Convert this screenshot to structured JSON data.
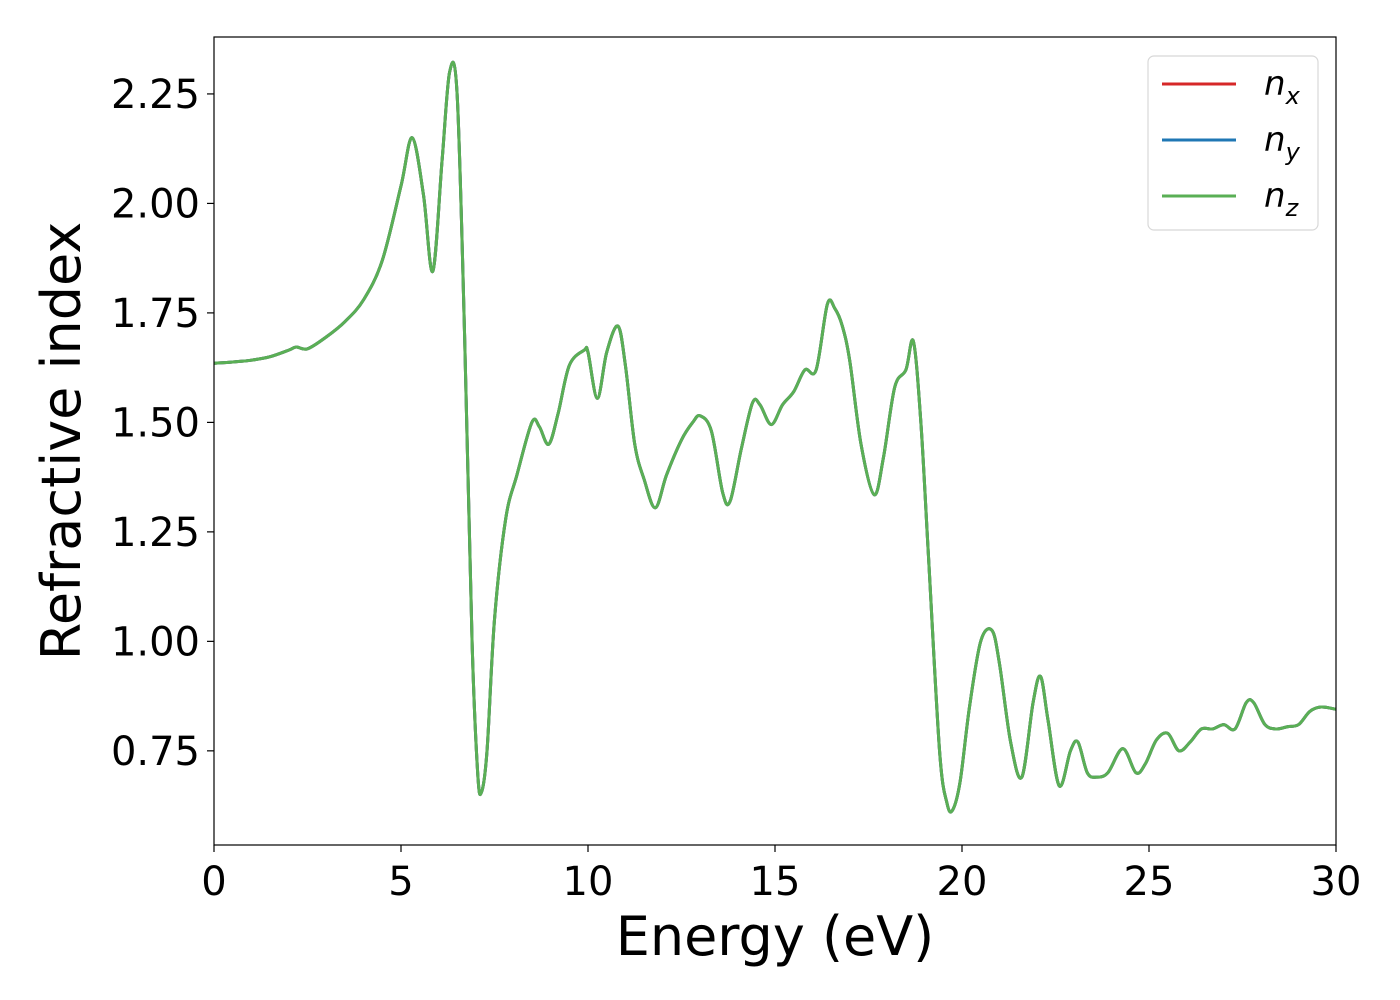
{
  "chart_data": {
    "type": "line",
    "title": "",
    "xlabel": "Energy (eV)",
    "ylabel": "Refractive index",
    "xlim": [
      0,
      30
    ],
    "ylim": [
      0.535,
      2.38
    ],
    "xticks": [
      0,
      5,
      10,
      15,
      20,
      25,
      30
    ],
    "xtick_labels": [
      "0",
      "5",
      "10",
      "15",
      "20",
      "25",
      "30"
    ],
    "yticks": [
      0.75,
      1.0,
      1.25,
      1.5,
      1.75,
      2.0,
      2.25
    ],
    "ytick_labels": [
      "0.75",
      "1.00",
      "1.25",
      "1.50",
      "1.75",
      "2.00",
      "2.25"
    ],
    "grid": false,
    "legend_position": "top-right",
    "x": [
      0,
      0.5,
      1.0,
      1.5,
      2.0,
      2.2,
      2.5,
      3.0,
      3.5,
      4.0,
      4.5,
      5.0,
      5.3,
      5.6,
      5.85,
      6.1,
      6.3,
      6.5,
      6.7,
      6.9,
      7.05,
      7.15,
      7.3,
      7.5,
      7.8,
      8.1,
      8.5,
      8.7,
      8.95,
      9.2,
      9.5,
      9.9,
      10.0,
      10.25,
      10.5,
      10.8,
      11.0,
      11.25,
      11.5,
      11.8,
      12.1,
      12.5,
      12.8,
      13.0,
      13.3,
      13.6,
      13.8,
      14.1,
      14.4,
      14.6,
      14.9,
      15.2,
      15.5,
      15.8,
      16.1,
      16.4,
      16.6,
      16.8,
      17.0,
      17.3,
      17.65,
      17.9,
      18.2,
      18.5,
      18.7,
      18.9,
      19.1,
      19.4,
      19.6,
      19.75,
      19.95,
      20.2,
      20.5,
      20.8,
      21.0,
      21.3,
      21.6,
      21.9,
      22.1,
      22.3,
      22.6,
      22.9,
      23.1,
      23.35,
      23.6,
      23.9,
      24.3,
      24.65,
      24.9,
      25.2,
      25.5,
      25.8,
      26.1,
      26.4,
      26.7,
      27.0,
      27.3,
      27.6,
      27.8,
      28.1,
      28.4,
      28.7,
      29.0,
      29.3,
      29.6,
      30.0
    ],
    "series": [
      {
        "name": "n_x",
        "color": "#d62728",
        "values": [
          1.635,
          1.638,
          1.642,
          1.65,
          1.665,
          1.672,
          1.668,
          1.695,
          1.73,
          1.78,
          1.87,
          2.04,
          2.15,
          2.02,
          1.845,
          2.1,
          2.3,
          2.25,
          1.7,
          1.0,
          0.7,
          0.655,
          0.75,
          1.05,
          1.28,
          1.38,
          1.5,
          1.49,
          1.45,
          1.52,
          1.63,
          1.665,
          1.66,
          1.555,
          1.66,
          1.72,
          1.63,
          1.45,
          1.37,
          1.305,
          1.38,
          1.46,
          1.5,
          1.515,
          1.48,
          1.34,
          1.32,
          1.44,
          1.545,
          1.54,
          1.495,
          1.54,
          1.57,
          1.62,
          1.62,
          1.77,
          1.76,
          1.72,
          1.64,
          1.45,
          1.335,
          1.42,
          1.58,
          1.62,
          1.685,
          1.5,
          1.2,
          0.75,
          0.63,
          0.615,
          0.68,
          0.85,
          1.0,
          1.025,
          0.95,
          0.77,
          0.69,
          0.86,
          0.92,
          0.82,
          0.67,
          0.75,
          0.77,
          0.7,
          0.69,
          0.7,
          0.755,
          0.7,
          0.72,
          0.775,
          0.79,
          0.75,
          0.77,
          0.8,
          0.8,
          0.81,
          0.8,
          0.86,
          0.86,
          0.81,
          0.8,
          0.805,
          0.81,
          0.84,
          0.85,
          0.845
        ]
      },
      {
        "name": "n_y",
        "color": "#1f77b4",
        "values": [
          1.635,
          1.638,
          1.642,
          1.65,
          1.665,
          1.672,
          1.668,
          1.695,
          1.73,
          1.78,
          1.87,
          2.04,
          2.15,
          2.02,
          1.845,
          2.1,
          2.3,
          2.25,
          1.7,
          1.0,
          0.7,
          0.655,
          0.75,
          1.05,
          1.28,
          1.38,
          1.5,
          1.49,
          1.45,
          1.52,
          1.63,
          1.665,
          1.66,
          1.555,
          1.66,
          1.72,
          1.63,
          1.45,
          1.37,
          1.305,
          1.38,
          1.46,
          1.5,
          1.515,
          1.48,
          1.34,
          1.32,
          1.44,
          1.545,
          1.54,
          1.495,
          1.54,
          1.57,
          1.62,
          1.62,
          1.77,
          1.76,
          1.72,
          1.64,
          1.45,
          1.335,
          1.42,
          1.58,
          1.62,
          1.685,
          1.5,
          1.2,
          0.75,
          0.63,
          0.615,
          0.68,
          0.85,
          1.0,
          1.025,
          0.95,
          0.77,
          0.69,
          0.86,
          0.92,
          0.82,
          0.67,
          0.75,
          0.77,
          0.7,
          0.69,
          0.7,
          0.755,
          0.7,
          0.72,
          0.775,
          0.79,
          0.75,
          0.77,
          0.8,
          0.8,
          0.81,
          0.8,
          0.86,
          0.86,
          0.81,
          0.8,
          0.805,
          0.81,
          0.84,
          0.85,
          0.845
        ]
      },
      {
        "name": "n_z",
        "color": "#5aaf55",
        "values": [
          1.635,
          1.638,
          1.642,
          1.65,
          1.665,
          1.672,
          1.668,
          1.695,
          1.73,
          1.78,
          1.87,
          2.04,
          2.15,
          2.02,
          1.845,
          2.1,
          2.3,
          2.25,
          1.7,
          1.0,
          0.7,
          0.655,
          0.75,
          1.05,
          1.28,
          1.38,
          1.5,
          1.49,
          1.45,
          1.52,
          1.63,
          1.665,
          1.66,
          1.555,
          1.66,
          1.72,
          1.63,
          1.45,
          1.37,
          1.305,
          1.38,
          1.46,
          1.5,
          1.515,
          1.48,
          1.34,
          1.32,
          1.44,
          1.545,
          1.54,
          1.495,
          1.54,
          1.57,
          1.62,
          1.62,
          1.77,
          1.76,
          1.72,
          1.64,
          1.45,
          1.335,
          1.42,
          1.58,
          1.62,
          1.685,
          1.5,
          1.2,
          0.75,
          0.63,
          0.615,
          0.68,
          0.85,
          1.0,
          1.025,
          0.95,
          0.77,
          0.69,
          0.86,
          0.92,
          0.82,
          0.67,
          0.75,
          0.77,
          0.7,
          0.69,
          0.7,
          0.755,
          0.7,
          0.72,
          0.775,
          0.79,
          0.75,
          0.77,
          0.8,
          0.8,
          0.81,
          0.8,
          0.86,
          0.86,
          0.81,
          0.8,
          0.805,
          0.81,
          0.84,
          0.85,
          0.845
        ]
      }
    ],
    "legend": [
      {
        "base": "n",
        "sub": "x",
        "color": "#d62728"
      },
      {
        "base": "n",
        "sub": "y",
        "color": "#1f77b4"
      },
      {
        "base": "n",
        "sub": "z",
        "color": "#5aaf55"
      }
    ]
  }
}
